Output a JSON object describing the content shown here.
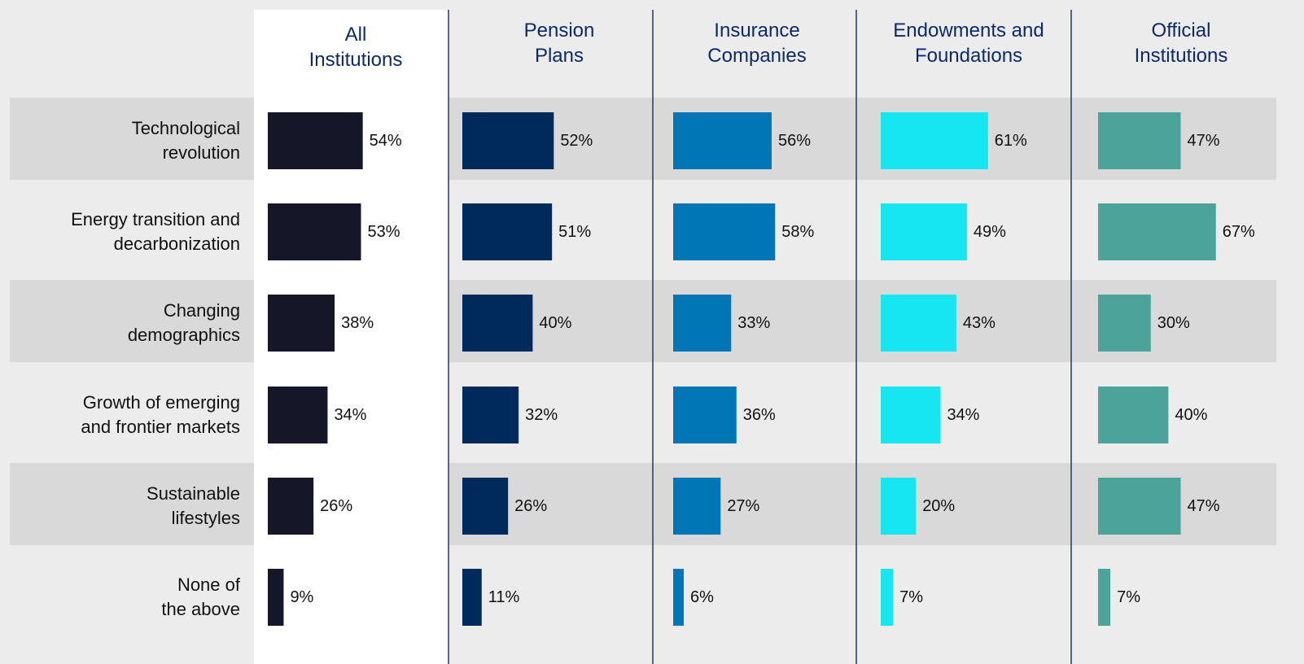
{
  "chart_data": {
    "type": "bar",
    "orientation": "horizontal",
    "categories": [
      "Technological revolution",
      "Energy transition and decarbonization",
      "Changing demographics",
      "Growth of emerging and frontier markets",
      "Sustainable lifestyles",
      "None of the above"
    ],
    "xlim": [
      0,
      100
    ],
    "series": [
      {
        "name": "All Institutions",
        "color": "#151729",
        "values": [
          54,
          53,
          38,
          34,
          26,
          9
        ],
        "value_labels": [
          "54%",
          "53%",
          "38%",
          "34%",
          "26%",
          "9%"
        ]
      },
      {
        "name": "Pension Plans",
        "color": "#002a5c",
        "values": [
          52,
          51,
          40,
          32,
          26,
          11
        ],
        "value_labels": [
          "52%",
          "51%",
          "40%",
          "32%",
          "26%",
          "11%"
        ]
      },
      {
        "name": "Insurance Companies",
        "color": "#0076b6",
        "values": [
          56,
          58,
          33,
          36,
          27,
          6
        ],
        "value_labels": [
          "56%",
          "58%",
          "33%",
          "36%",
          "27%",
          "6%"
        ]
      },
      {
        "name": "Endowments and Foundations",
        "color": "#15e6f0",
        "values": [
          61,
          49,
          43,
          34,
          20,
          7
        ],
        "value_labels": [
          "61%",
          "49%",
          "43%",
          "34%",
          "20%",
          "7%"
        ]
      },
      {
        "name": "Official Institutions",
        "color": "#4ca399",
        "values": [
          47,
          67,
          30,
          40,
          47,
          7
        ],
        "value_labels": [
          "47%",
          "67%",
          "30%",
          "40%",
          "47%",
          "7%"
        ]
      }
    ]
  }
}
